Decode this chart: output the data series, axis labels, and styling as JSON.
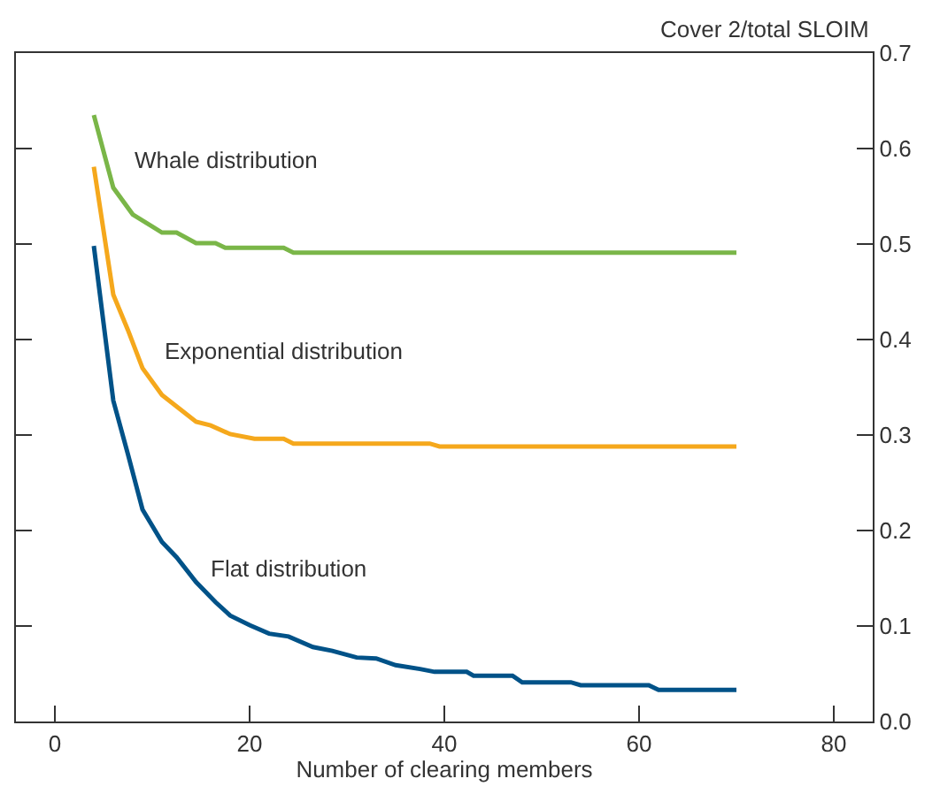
{
  "chart_data": {
    "type": "line",
    "xlabel": "Number of clearing members",
    "ylabel": "Cover 2/total SLOIM",
    "xlim": [
      -4,
      84
    ],
    "xticks": [
      0,
      20,
      40,
      60,
      80
    ],
    "ylim": [
      0,
      0.7
    ],
    "yticks": [
      {
        "value": 0,
        "label": "0.0"
      },
      0.1,
      0.2,
      0.3,
      0.4,
      0.5,
      0.6,
      0.7
    ],
    "marker": "none",
    "line_style": "solid",
    "series": [
      {
        "name": "Whale distribution",
        "color": "#7ab648",
        "x": [
          4,
          6,
          8,
          11,
          12.5,
          14.5,
          16.5,
          17.5,
          23.5,
          24.5,
          70
        ],
        "values": [
          0.635,
          0.559,
          0.531,
          0.512,
          0.512,
          0.501,
          0.501,
          0.496,
          0.496,
          0.491,
          0.491
        ]
      },
      {
        "name": "Exponential distribution",
        "color": "#f5a81c",
        "x": [
          4,
          6,
          7.5,
          9,
          11,
          13,
          14.5,
          16,
          18,
          20.5,
          23.5,
          24.5,
          38.5,
          39.5,
          70
        ],
        "values": [
          0.581,
          0.447,
          0.41,
          0.37,
          0.342,
          0.326,
          0.314,
          0.31,
          0.301,
          0.296,
          0.296,
          0.291,
          0.291,
          0.288,
          0.288
        ]
      },
      {
        "name": "Flat distribution",
        "color": "#005288",
        "x": [
          4,
          6,
          7.5,
          9,
          11,
          12.5,
          14.5,
          16.5,
          18,
          20,
          22,
          24,
          26.5,
          28.5,
          31,
          33,
          35,
          37.5,
          39,
          42.3,
          43,
          47,
          48,
          53,
          54,
          61,
          62,
          70
        ],
        "values": [
          0.498,
          0.336,
          0.28,
          0.222,
          0.188,
          0.172,
          0.146,
          0.125,
          0.111,
          0.101,
          0.092,
          0.089,
          0.078,
          0.074,
          0.067,
          0.066,
          0.059,
          0.055,
          0.052,
          0.052,
          0.048,
          0.048,
          0.041,
          0.041,
          0.038,
          0.038,
          0.033,
          0.033
        ]
      }
    ]
  }
}
